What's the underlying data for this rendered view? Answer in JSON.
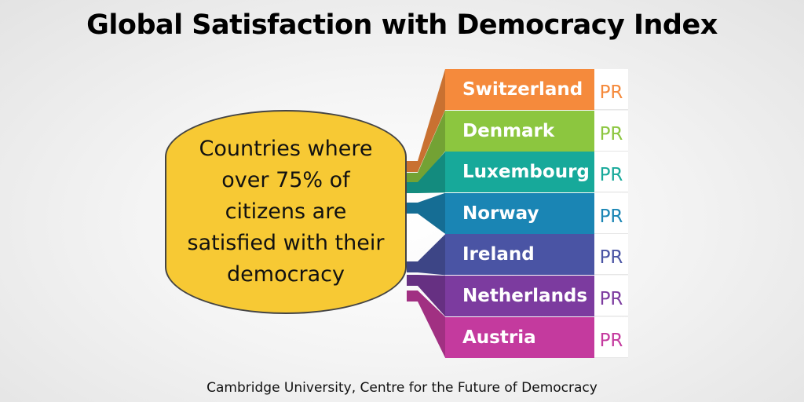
{
  "title": "Global Satisfaction with Democracy Index",
  "bubble_text": "Countries where over 75% of citizens are satisfied with their democracy",
  "source": "Cambridge University, Centre for the Future of Democracy",
  "countries": [
    {
      "name": "Switzerland",
      "tag": "PR",
      "color": "#f58a3c"
    },
    {
      "name": "Denmark",
      "tag": "PR",
      "color": "#8cc63f"
    },
    {
      "name": "Luxembourg",
      "tag": "PR",
      "color": "#17a99a"
    },
    {
      "name": "Norway",
      "tag": "PR",
      "color": "#1a85b4"
    },
    {
      "name": "Ireland",
      "tag": "PR",
      "color": "#4a54a4"
    },
    {
      "name": "Netherlands",
      "tag": "PR",
      "color": "#7c3b9f"
    },
    {
      "name": "Austria",
      "tag": "PR",
      "color": "#c43a9e"
    }
  ]
}
